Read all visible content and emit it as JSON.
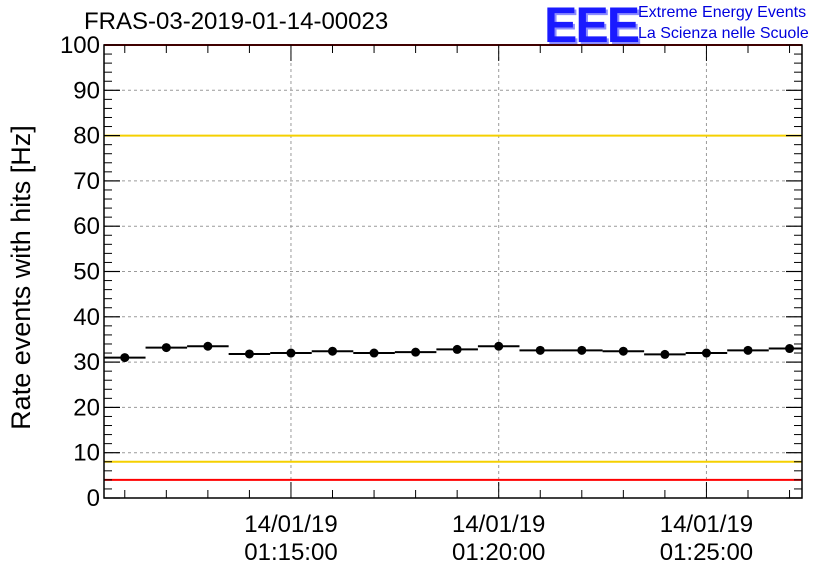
{
  "header": {
    "title": "FRAS-03-2019-01-14-00023"
  },
  "logo": {
    "mark": "EEE",
    "line1": "Extreme Energy Events",
    "line2": "La Scienza nelle Scuole",
    "color": "#0000ee"
  },
  "chart_data": {
    "type": "scatter",
    "title": "FRAS-03-2019-01-14-00023",
    "xlabel": "",
    "ylabel": "Rate events with hits [Hz]",
    "ylim": [
      0,
      100
    ],
    "y_ticks": [
      0,
      10,
      20,
      30,
      40,
      50,
      60,
      70,
      80,
      90,
      100
    ],
    "xlim_minutes": [
      10.5,
      27.3
    ],
    "x_ticks": [
      {
        "minute": 15,
        "date": "14/01/19",
        "time": "01:15:00"
      },
      {
        "minute": 20,
        "date": "14/01/19",
        "time": "01:20:00"
      },
      {
        "minute": 25,
        "date": "14/01/19",
        "time": "01:25:00"
      }
    ],
    "grid": true,
    "bin_width_minutes": 1,
    "x_minutes": [
      11,
      12,
      13,
      14,
      15,
      16,
      17,
      18,
      19,
      20,
      21,
      22,
      23,
      24,
      25,
      26,
      27
    ],
    "values": [
      31,
      33.2,
      33.5,
      31.8,
      32,
      32.4,
      32,
      32.2,
      32.8,
      33.5,
      32.6,
      32.6,
      32.4,
      31.7,
      32,
      32.6,
      33
    ],
    "reference_lines": [
      {
        "y": 100,
        "color": "#ff0000"
      },
      {
        "y": 80,
        "color": "#f5d000"
      },
      {
        "y": 8,
        "color": "#f5d000"
      },
      {
        "y": 4,
        "color": "#ff0000"
      }
    ]
  }
}
